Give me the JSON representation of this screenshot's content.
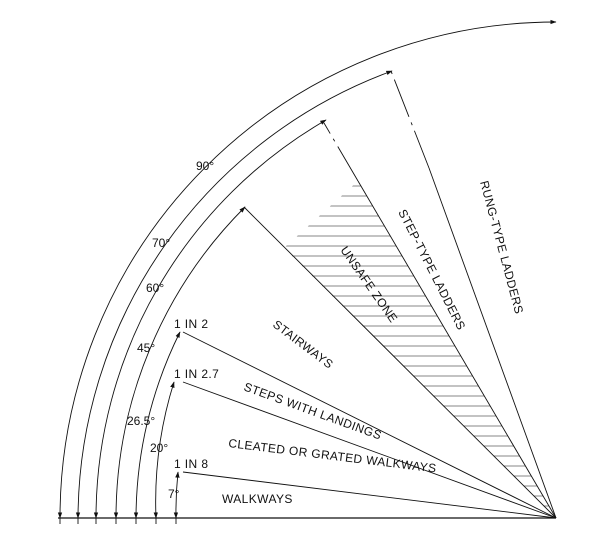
{
  "angles": [
    {
      "id": "a7",
      "text": "7°",
      "deg": 7
    },
    {
      "id": "a20",
      "text": "20°",
      "deg": 20
    },
    {
      "id": "a265",
      "text": "26.5°",
      "deg": 26.5
    },
    {
      "id": "a45",
      "text": "45°",
      "deg": 45
    },
    {
      "id": "a60",
      "text": "60°",
      "deg": 60
    },
    {
      "id": "a70",
      "text": "70°",
      "deg": 70
    },
    {
      "id": "a90",
      "text": "90°",
      "deg": 90
    }
  ],
  "slopes": [
    {
      "id": "s1in8",
      "text": "1 IN 8"
    },
    {
      "id": "s1in27",
      "text": "1 IN 2.7"
    },
    {
      "id": "s1in2",
      "text": "1 IN 2"
    }
  ],
  "zones": [
    {
      "id": "walkways",
      "text": "WALKWAYS"
    },
    {
      "id": "cleated",
      "text": "CLEATED OR GRATED WALKWAYS"
    },
    {
      "id": "steps",
      "text": "STEPS WITH LANDINGS"
    },
    {
      "id": "stairways",
      "text": "STAIRWAYS"
    },
    {
      "id": "unsafe",
      "text": "UNSAFE ZONE"
    },
    {
      "id": "steptype",
      "text": "STEP-TYPE LADDERS"
    },
    {
      "id": "rung",
      "text": "RUNG-TYPE LADDERS"
    }
  ],
  "colors": {
    "ink": "#111111",
    "background": "#ffffff"
  }
}
